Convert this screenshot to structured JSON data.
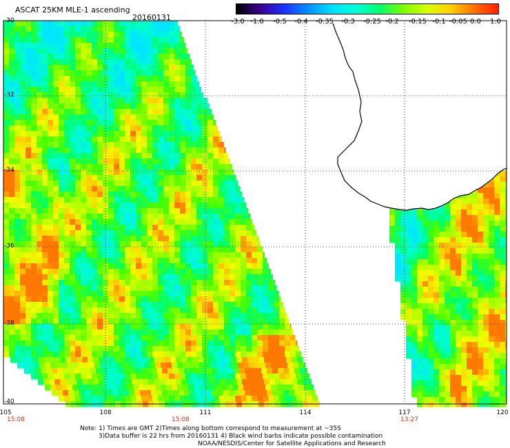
{
  "title": "ASCAT 25KM MLE-1 ascending",
  "date": "20160131",
  "colorbar": {
    "labels": [
      "-3.0",
      "-1.0",
      "-0.5",
      "-0.4",
      "-0.35",
      "-0.3",
      "-0.25",
      "-0.2",
      "-0.15",
      "-0.1",
      "-0.05",
      "0.0",
      "1.0"
    ],
    "colors": [
      "#000000",
      "#3a0090",
      "#1c30ff",
      "#0090ff",
      "#00e0ff",
      "#00ffd8",
      "#00ff70",
      "#7aff00",
      "#d8ff00",
      "#ffd000",
      "#ff7000",
      "#ff1e00"
    ]
  },
  "lat_labels": [
    "-30",
    "-32",
    "-34",
    "-36",
    "-38",
    "-40"
  ],
  "lon_labels": [
    "105",
    "108",
    "111",
    "114",
    "117",
    "120"
  ],
  "pass_times": [
    "15:08",
    "15:08",
    "13:27"
  ],
  "notes": [
    "Note: 1) Times are GMT 2)Times along bottom correspond to measurement at ~35S",
    "3)Data buffer is 22 hrs from 20160131 4) Black wind barbs indicate possible contamination",
    "NOAA/NESDIS/Center for Satellite Applications and Research"
  ]
}
